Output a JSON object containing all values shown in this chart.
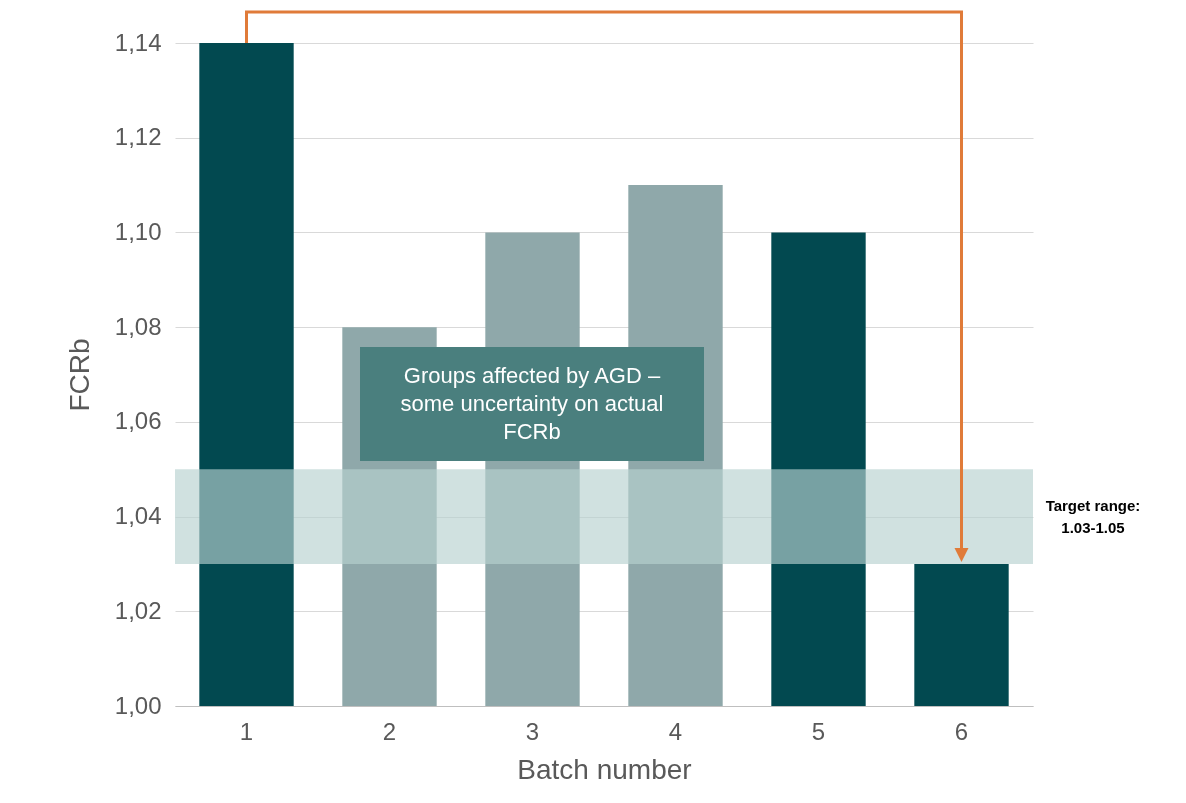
{
  "chart_data": {
    "type": "bar",
    "xlabel": "Batch number",
    "ylabel": "FCRb",
    "categories": [
      "1",
      "2",
      "3",
      "4",
      "5",
      "6"
    ],
    "values": [
      1.14,
      1.08,
      1.1,
      1.11,
      1.1,
      1.03
    ],
    "colors": [
      "#024950",
      "#8fa8aa",
      "#8fa8aa",
      "#8fa8aa",
      "#024950",
      "#024950"
    ],
    "ylim": [
      1.0,
      1.14
    ],
    "yticks": [
      {
        "value": 1.0,
        "label": "1,00"
      },
      {
        "value": 1.02,
        "label": "1,02"
      },
      {
        "value": 1.04,
        "label": "1,04"
      },
      {
        "value": 1.06,
        "label": "1,06"
      },
      {
        "value": 1.08,
        "label": "1,08"
      },
      {
        "value": 1.1,
        "label": "1,10"
      },
      {
        "value": 1.12,
        "label": "1,12"
      },
      {
        "value": 1.14,
        "label": "1,14"
      }
    ],
    "grid": "y",
    "bands": [
      {
        "axis": "y",
        "from": 1.03,
        "to": 1.05,
        "label": "Target range: 1.03-1.05",
        "color": "#b7d1cf"
      }
    ],
    "annotations": [
      "Groups affected by AGD – some uncertainty on actual FCRb"
    ]
  }
}
